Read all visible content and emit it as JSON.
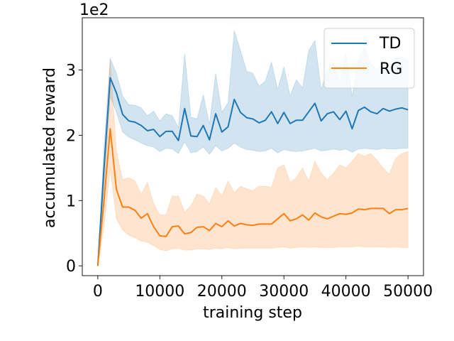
{
  "chart_data": {
    "type": "line",
    "title": "",
    "xlabel": "training step",
    "ylabel": "accumulated reward",
    "y_offset_label": "1e2",
    "xlim": [
      -2500,
      52500
    ],
    "ylim": [
      -0.15,
      3.8
    ],
    "xticks": [
      0,
      10000,
      20000,
      30000,
      40000,
      50000
    ],
    "xtick_labels": [
      "0",
      "10000",
      "20000",
      "30000",
      "40000",
      "50000"
    ],
    "yticks": [
      0,
      1,
      2,
      3
    ],
    "ytick_labels": [
      "0",
      "1",
      "2",
      "3"
    ],
    "legend_position": "top-right",
    "x": [
      0,
      1000,
      2000,
      3000,
      4000,
      5000,
      6000,
      7000,
      8000,
      9000,
      10000,
      11000,
      12000,
      13000,
      14000,
      15000,
      16000,
      17000,
      18000,
      19000,
      20000,
      21000,
      22000,
      23000,
      24000,
      25000,
      26000,
      27000,
      28000,
      29000,
      30000,
      31000,
      32000,
      33000,
      34000,
      35000,
      36000,
      37000,
      38000,
      39000,
      40000,
      41000,
      42000,
      43000,
      44000,
      45000,
      46000,
      47000,
      48000,
      49000,
      50000
    ],
    "series": [
      {
        "name": "TD",
        "color": "#1f77b4",
        "values": [
          0.0,
          1.5,
          2.88,
          2.65,
          2.32,
          2.22,
          2.2,
          2.15,
          2.07,
          2.09,
          1.98,
          2.06,
          2.06,
          1.92,
          2.41,
          1.99,
          1.98,
          2.15,
          1.93,
          2.33,
          2.05,
          2.13,
          2.55,
          2.35,
          2.27,
          2.25,
          2.19,
          2.23,
          2.36,
          2.18,
          2.35,
          2.18,
          2.23,
          2.23,
          2.36,
          2.49,
          2.22,
          2.33,
          2.36,
          2.24,
          2.37,
          2.1,
          2.38,
          2.43,
          2.36,
          2.33,
          2.41,
          2.37,
          2.4,
          2.42,
          2.39
        ],
        "lower": [
          0.0,
          1.2,
          2.6,
          2.35,
          2.05,
          1.97,
          1.93,
          1.88,
          1.84,
          1.82,
          1.75,
          1.8,
          1.79,
          1.72,
          1.9,
          1.73,
          1.75,
          1.82,
          1.71,
          1.84,
          1.76,
          1.8,
          1.88,
          1.82,
          1.78,
          1.77,
          1.75,
          1.76,
          1.8,
          1.73,
          1.78,
          1.76,
          1.75,
          1.76,
          1.78,
          1.8,
          1.76,
          1.77,
          1.79,
          1.77,
          1.79,
          1.74,
          1.79,
          1.8,
          1.79,
          1.78,
          1.8,
          1.79,
          1.79,
          1.8,
          1.8
        ],
        "upper": [
          0.0,
          1.8,
          3.18,
          2.95,
          2.6,
          2.47,
          2.46,
          2.42,
          2.3,
          2.37,
          2.22,
          2.33,
          2.3,
          2.12,
          3.25,
          2.28,
          2.25,
          2.62,
          2.17,
          2.95,
          2.35,
          2.5,
          3.6,
          3.3,
          2.98,
          2.95,
          2.75,
          2.83,
          3.12,
          2.7,
          3.05,
          2.6,
          2.85,
          2.73,
          3.3,
          3.45,
          2.7,
          3.0,
          3.1,
          2.8,
          3.25,
          2.6,
          3.15,
          3.35,
          3.1,
          3.0,
          3.15,
          3.05,
          3.18,
          3.2,
          3.15
        ]
      },
      {
        "name": "RG",
        "color": "#ff7f0e",
        "values": [
          0.0,
          1.0,
          2.1,
          1.17,
          0.9,
          0.9,
          0.85,
          0.73,
          0.8,
          0.6,
          0.46,
          0.45,
          0.6,
          0.61,
          0.49,
          0.51,
          0.59,
          0.6,
          0.54,
          0.65,
          0.6,
          0.69,
          0.61,
          0.65,
          0.63,
          0.62,
          0.64,
          0.64,
          0.64,
          0.72,
          0.8,
          0.69,
          0.72,
          0.78,
          0.7,
          0.81,
          0.75,
          0.72,
          0.76,
          0.8,
          0.79,
          0.81,
          0.87,
          0.86,
          0.88,
          0.88,
          0.88,
          0.8,
          0.86,
          0.86,
          0.88
        ],
        "lower": [
          0.0,
          0.6,
          1.5,
          0.72,
          0.55,
          0.47,
          0.43,
          0.38,
          0.36,
          0.31,
          0.25,
          0.23,
          0.26,
          0.27,
          0.24,
          0.24,
          0.26,
          0.26,
          0.25,
          0.27,
          0.26,
          0.28,
          0.26,
          0.27,
          0.27,
          0.27,
          0.27,
          0.27,
          0.27,
          0.28,
          0.29,
          0.27,
          0.28,
          0.29,
          0.28,
          0.29,
          0.28,
          0.28,
          0.28,
          0.29,
          0.29,
          0.29,
          0.3,
          0.29,
          0.29,
          0.29,
          0.29,
          0.28,
          0.29,
          0.28,
          0.28
        ],
        "upper": [
          0.0,
          1.4,
          3.15,
          1.75,
          1.32,
          1.35,
          1.3,
          1.1,
          1.28,
          0.95,
          0.78,
          0.78,
          1.07,
          1.07,
          0.82,
          0.92,
          1.1,
          1.07,
          0.95,
          1.2,
          1.07,
          1.3,
          1.12,
          1.22,
          1.18,
          1.15,
          1.22,
          1.22,
          1.2,
          1.5,
          1.55,
          1.28,
          1.35,
          1.5,
          1.3,
          1.6,
          1.42,
          1.32,
          1.42,
          1.55,
          1.5,
          1.6,
          1.72,
          1.68,
          1.72,
          1.62,
          1.5,
          1.4,
          1.65,
          1.72,
          1.75
        ]
      }
    ]
  }
}
